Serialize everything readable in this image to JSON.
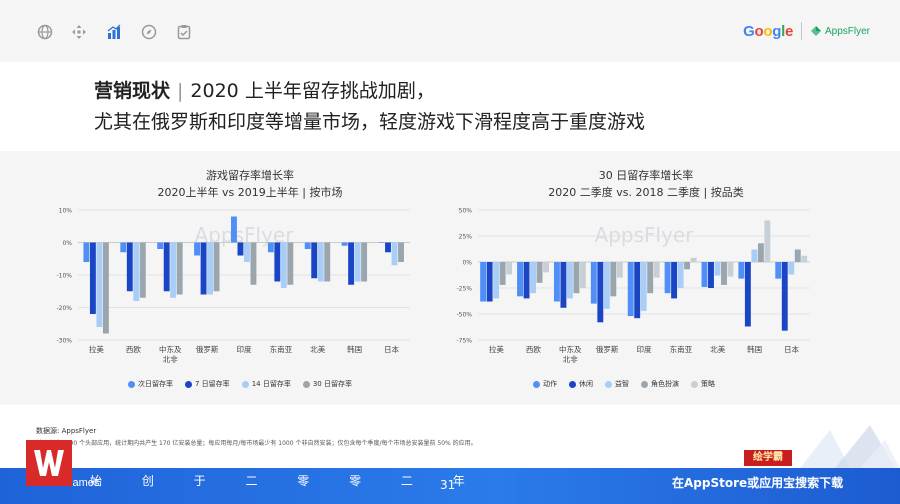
{
  "brand": {
    "google": "Google",
    "appsflyer": "AppsFlyer"
  },
  "title": {
    "bold": "营销现状",
    "line1_rest": "2020 上半年留存挑战加剧，",
    "line2": "尤其在俄罗斯和印度等增量市场，轻度游戏下滑程度高于重度游戏"
  },
  "watermark": "AppsFlyer",
  "colors": {
    "c1": "#4f8ff7",
    "c2": "#1a45c4",
    "c3": "#a8cdf6",
    "c4": "#9aa5ad",
    "c5": "#c7d0d6"
  },
  "chart_data": [
    {
      "type": "bar",
      "title": "游戏留存率增长率",
      "subtitle": "2020上半年 vs 2019上半年 | 按市场",
      "categories": [
        "拉美",
        "西欧",
        "中东及北非",
        "俄罗斯",
        "印度",
        "东南亚",
        "北美",
        "韩国",
        "日本"
      ],
      "category_lines": [
        [
          "拉美"
        ],
        [
          "西欧"
        ],
        [
          "中东及",
          "北非"
        ],
        [
          "俄罗斯"
        ],
        [
          "印度"
        ],
        [
          "东南亚"
        ],
        [
          "北美"
        ],
        [
          "韩国"
        ],
        [
          "日本"
        ]
      ],
      "ylim": [
        -30,
        10
      ],
      "yticks": [
        10,
        0,
        -10,
        -20,
        -30
      ],
      "ytick_labels": [
        "10%",
        "0%",
        "-10%",
        "-20%",
        "-30%"
      ],
      "series": [
        {
          "name": "次日留存率",
          "values": [
            -6,
            -3,
            -2,
            -4,
            8,
            -3,
            -2,
            -1,
            0
          ]
        },
        {
          "name": "7 日留存率",
          "values": [
            -22,
            -15,
            -15,
            -16,
            -4,
            -12,
            -11,
            -13,
            -3
          ]
        },
        {
          "name": "14 日留存率",
          "values": [
            -26,
            -18,
            -17,
            -16,
            -6,
            -14,
            -12,
            -12,
            -7
          ]
        },
        {
          "name": "30 日留存率",
          "values": [
            -28,
            -17,
            -16,
            -15,
            -13,
            -13,
            -12,
            -12,
            -6
          ]
        }
      ]
    },
    {
      "type": "bar",
      "title": "30 日留存率增长率",
      "subtitle": "2020 二季度 vs. 2018 二季度 | 按品类",
      "categories": [
        "拉美",
        "西欧",
        "中东及北非",
        "俄罗斯",
        "印度",
        "东南亚",
        "北美",
        "韩国",
        "日本"
      ],
      "category_lines": [
        [
          "拉美"
        ],
        [
          "西欧"
        ],
        [
          "中东及",
          "北非"
        ],
        [
          "俄罗斯"
        ],
        [
          "印度"
        ],
        [
          "东南亚"
        ],
        [
          "北美"
        ],
        [
          "韩国"
        ],
        [
          "日本"
        ]
      ],
      "ylim": [
        -75,
        50
      ],
      "yticks": [
        50,
        25,
        0,
        -25,
        -50,
        -75
      ],
      "ytick_labels": [
        "50%",
        "25%",
        "0%",
        "-25%",
        "-50%",
        "-75%"
      ],
      "series": [
        {
          "name": "动作",
          "values": [
            -38,
            -33,
            -38,
            -40,
            -52,
            -30,
            -24,
            -16,
            -16
          ]
        },
        {
          "name": "休闲",
          "values": [
            -38,
            -35,
            -44,
            -58,
            -54,
            -35,
            -25,
            -62,
            -66
          ]
        },
        {
          "name": "益智",
          "values": [
            -35,
            -30,
            -35,
            -45,
            -47,
            -25,
            -13,
            12,
            -12
          ]
        },
        {
          "name": "角色扮演",
          "values": [
            -22,
            -20,
            -30,
            -33,
            -30,
            -7,
            -22,
            18,
            12
          ]
        },
        {
          "name": "策略",
          "values": [
            -12,
            -10,
            -25,
            -15,
            -15,
            4,
            -14,
            40,
            6
          ]
        }
      ]
    }
  ],
  "footnote": {
    "source": "数据源: AppsFlyer",
    "note": "基于全球 6000 个头部应用，统计期内共产生 170 亿安装总量；每应用每月/每市场最少有 1000 个非自然安装；仅包含每个季度/每个市场总安装量前 50% 的应用。"
  },
  "bottom": {
    "think": "Think Games",
    "slogan": "始 创 于 二 零 零 二 年",
    "page": "31",
    "promo": "在AppStore或应用宝搜索下载",
    "badge": "绘学霸"
  }
}
